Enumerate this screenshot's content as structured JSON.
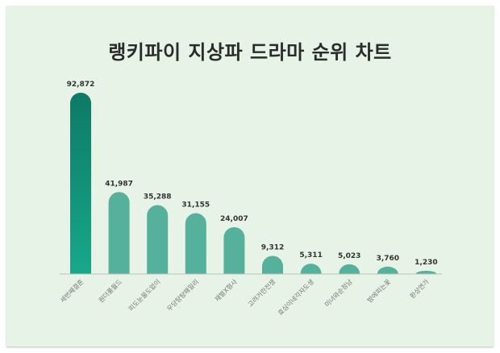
{
  "chart_data": {
    "type": "bar",
    "title": "랭키파이 지상파 드라마 순위 차트",
    "categories": [
      "세번째결혼",
      "원더풀월드",
      "피도눈물도없이",
      "우당탕탕패밀리",
      "재벌X형사",
      "고려거란전쟁",
      "효심이네각자도생",
      "미녀와순정남",
      "밤에피는꽃",
      "환상연가"
    ],
    "values": [
      92872,
      41987,
      35288,
      31155,
      24007,
      9312,
      5311,
      5023,
      3760,
      1230
    ],
    "value_labels": [
      "92,872",
      "41,987",
      "35,288",
      "31,155",
      "24,007",
      "9,312",
      "5,311",
      "5,023",
      "3,760",
      "1,230"
    ],
    "ylim": [
      0,
      92872
    ],
    "grid": false,
    "legend": "none"
  },
  "colors": {
    "background": "#e6f3e6",
    "top_bar_top": "#0e7a66",
    "top_bar_bottom": "#17a88a",
    "bar": "#55b19b",
    "axis": "#b8c4b8"
  }
}
